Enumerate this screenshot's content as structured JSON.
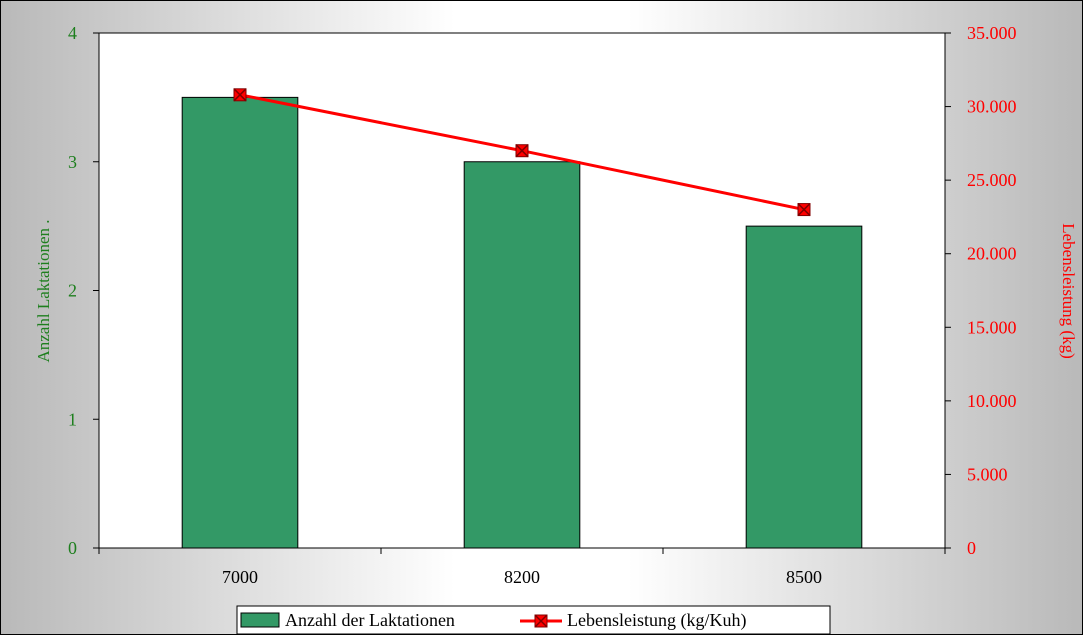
{
  "chart_data": {
    "type": "bar",
    "categories": [
      "7000",
      "8200",
      "8500"
    ],
    "series": [
      {
        "name": "Anzahl der Laktationen",
        "type": "bar",
        "axis": "left",
        "values": [
          3.5,
          3.0,
          2.5
        ],
        "color": "#339966"
      },
      {
        "name": "Lebensleistung (kg/Kuh)",
        "type": "line",
        "axis": "right",
        "values": [
          30800,
          27000,
          23000
        ],
        "color": "#ff0000"
      }
    ],
    "ylabel": "Anzahl Laktationen .",
    "ylabel_right": "Lebensleistung (kg)",
    "ylim": [
      0,
      4
    ],
    "ylim_right": [
      0,
      35000
    ],
    "yticks": [
      "0",
      "1",
      "2",
      "3",
      "4"
    ],
    "yticks_right": [
      "0",
      "5.000",
      "10.000",
      "15.000",
      "20.000",
      "25.000",
      "30.000",
      "35.000"
    ],
    "legend_position": "bottom",
    "grid": false
  }
}
